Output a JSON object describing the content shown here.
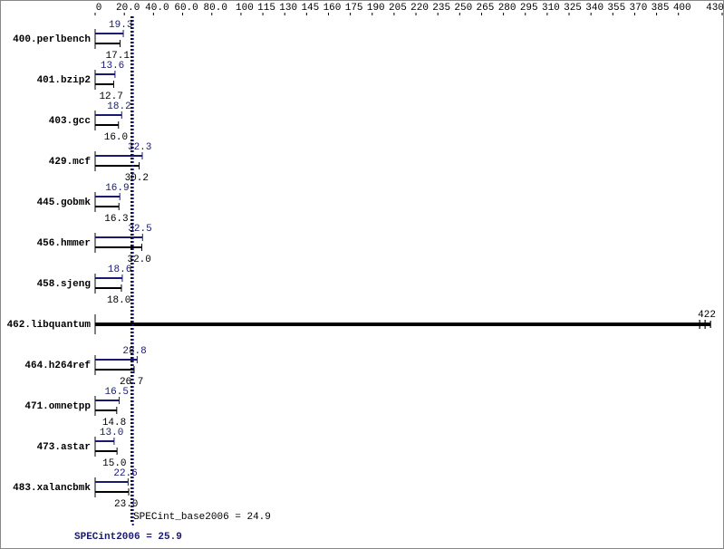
{
  "chart_data": {
    "type": "bar",
    "categories": [
      "400.perlbench",
      "401.bzip2",
      "403.gcc",
      "429.mcf",
      "445.gobmk",
      "456.hmmer",
      "458.sjeng",
      "462.libquantum",
      "464.h264ref",
      "471.omnetpp",
      "473.astar",
      "483.xalancbmk"
    ],
    "series": [
      {
        "name": "SPECint2006",
        "color": "#191970",
        "values": [
          19.3,
          13.6,
          18.2,
          32.3,
          16.9,
          32.5,
          18.6,
          422,
          28.8,
          16.5,
          13.0,
          22.6
        ],
        "value_labels": [
          "19.3",
          "13.6",
          "18.2",
          "32.3",
          "16.9",
          "32.5",
          "18.6",
          null,
          "28.8",
          "16.5",
          "13.0",
          "22.6"
        ]
      },
      {
        "name": "SPECint_base2006",
        "color": "#000000",
        "values": [
          17.1,
          12.7,
          16.0,
          30.2,
          16.3,
          32.0,
          18.0,
          422,
          26.7,
          14.8,
          15.0,
          23.0
        ],
        "value_labels": [
          "17.1",
          "12.7",
          "16.0",
          "30.2",
          "16.3",
          "32.0",
          "18.0",
          "422",
          "26.7",
          "14.8",
          "15.0",
          "23.0"
        ]
      }
    ],
    "xlim": [
      0,
      430
    ],
    "xticks": [
      0,
      {
        "value": 20,
        "label": "20.0"
      },
      {
        "value": 40,
        "label": "40.0"
      },
      {
        "value": 60,
        "label": "60.0"
      },
      {
        "value": 80,
        "label": "80.0"
      },
      100,
      115,
      130,
      145,
      160,
      175,
      190,
      205,
      220,
      235,
      250,
      265,
      280,
      295,
      310,
      325,
      340,
      355,
      370,
      385,
      400,
      430
    ],
    "summary": [
      {
        "label": "SPECint_base2006 = 24.9",
        "value": 24.9,
        "color": "#000000"
      },
      {
        "label": "SPECint2006 = 25.9",
        "value": 25.9,
        "color": "#191970"
      }
    ]
  }
}
